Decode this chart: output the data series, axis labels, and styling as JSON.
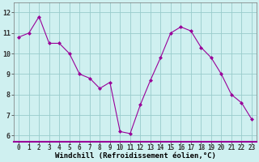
{
  "x": [
    0,
    1,
    2,
    3,
    4,
    5,
    6,
    7,
    8,
    9,
    10,
    11,
    12,
    13,
    14,
    15,
    16,
    17,
    18,
    19,
    20,
    21,
    22,
    23
  ],
  "y": [
    10.8,
    11.0,
    11.8,
    10.5,
    10.5,
    10.0,
    9.0,
    8.8,
    8.3,
    8.6,
    6.2,
    6.1,
    7.5,
    8.7,
    9.8,
    11.0,
    11.3,
    11.1,
    10.3,
    9.8,
    9.0,
    8.0,
    7.6,
    6.8
  ],
  "line_color": "#990099",
  "marker": "D",
  "marker_size": 2.0,
  "bg_color": "#cff0f0",
  "grid_color": "#99cccc",
  "xlabel": "Windchill (Refroidissement éolien,°C)",
  "tick_fontsize": 5.5,
  "xlabel_fontsize": 6.5,
  "ylabel_ticks": [
    6,
    7,
    8,
    9,
    10,
    11,
    12
  ],
  "xlim": [
    -0.5,
    23.5
  ],
  "ylim": [
    5.7,
    12.5
  ]
}
